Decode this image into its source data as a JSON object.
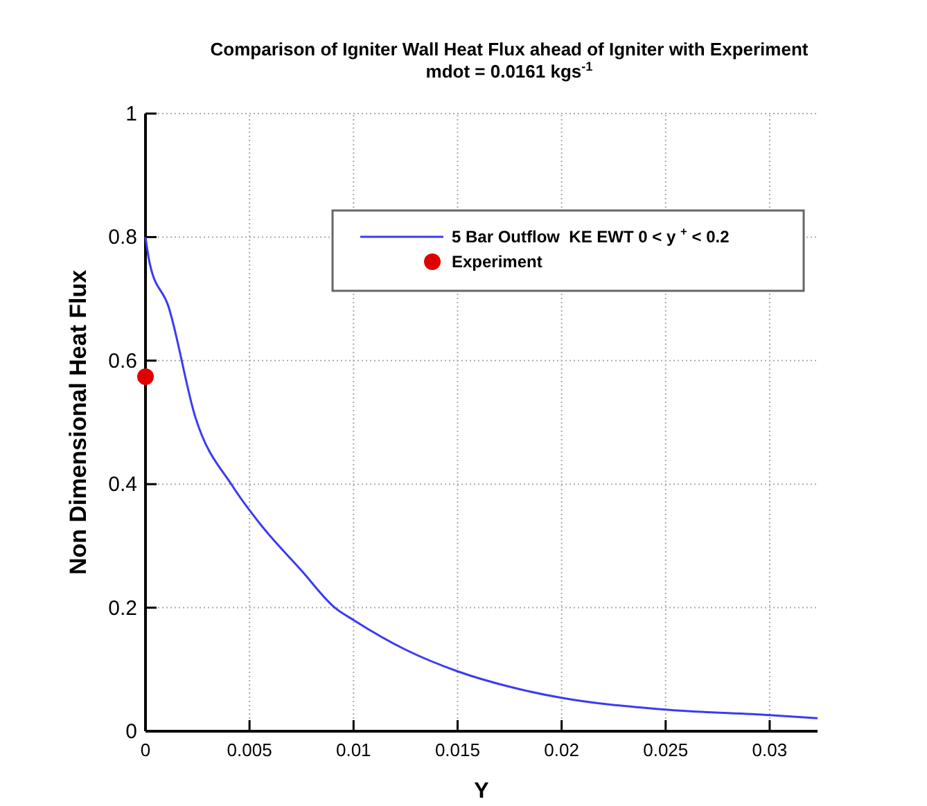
{
  "chart_data": {
    "type": "line",
    "title": "Comparison of Igniter Wall Heat Flux ahead of Igniter with Experiment",
    "subtitle": "mdot = 0.0161 kgs$^{-1}$",
    "xlabel": "Y",
    "ylabel": "Non Dimensional Heat Flux",
    "xlim": [
      0,
      0.0323
    ],
    "ylim": [
      0,
      1
    ],
    "xticks": [
      0,
      0.005,
      0.01,
      0.015,
      0.02,
      0.025,
      0.03
    ],
    "yticks": [
      0,
      0.2,
      0.4,
      0.6,
      0.8,
      1
    ],
    "grid": true,
    "legend": "top right",
    "series": [
      {
        "name": "5 Bar Outflow  KE EWT 0 < y $^{+}$ < 0.2",
        "color": "#3a3af5",
        "marker": "none",
        "line_style": "solid",
        "x": [
          0,
          0.0002,
          0.0011,
          0.0024,
          0.0042,
          0.0055,
          0.0075,
          0.0091,
          0.01,
          0.0125,
          0.015,
          0.0175,
          0.02,
          0.025,
          0.03,
          0.0323
        ],
        "values": [
          0.8,
          0.758,
          0.688,
          0.508,
          0.396,
          0.336,
          0.26,
          0.2,
          0.18,
          0.132,
          0.097,
          0.072,
          0.054,
          0.035,
          0.026,
          0.021
        ]
      },
      {
        "name": "Experiment",
        "type": "scatter",
        "color": "#e00000",
        "marker": "circle",
        "x": [
          0
        ],
        "values": [
          0.574
        ]
      }
    ]
  }
}
